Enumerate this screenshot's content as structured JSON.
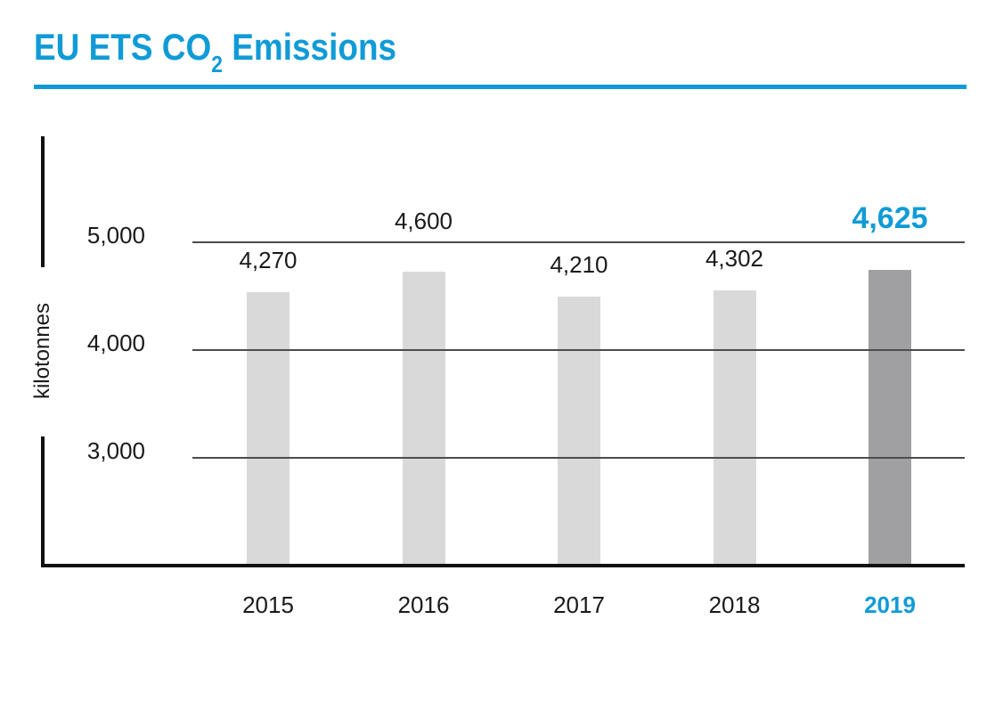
{
  "header": {
    "title_prefix": "EU ETS CO",
    "title_subscript": "2",
    "title_suffix": " Emissions"
  },
  "chart_data": {
    "type": "bar",
    "title": "EU ETS CO2 Emissions",
    "ylabel": "kilotonnes",
    "categories": [
      "2015",
      "2016",
      "2017",
      "2018",
      "2019"
    ],
    "values": [
      4270,
      4600,
      4210,
      4302,
      4625
    ],
    "value_labels": [
      "4,270",
      "4,600",
      "4,210",
      "4,302",
      "4,625"
    ],
    "yticks": [
      {
        "value": 5000,
        "label": "5,000"
      },
      {
        "value": 4000,
        "label": "4,000"
      },
      {
        "value": 3000,
        "label": "3,000"
      }
    ],
    "highlight_index": 4,
    "highlight_category": "2019",
    "grid": true,
    "legend": false,
    "colors": {
      "accent_blue": "#109bd7",
      "bar_default": "#d9d9da",
      "bar_highlight": "#a0a0a2",
      "gridline": "#4c4c4c",
      "axis": "#111111",
      "text": "#1a1a1a"
    }
  }
}
